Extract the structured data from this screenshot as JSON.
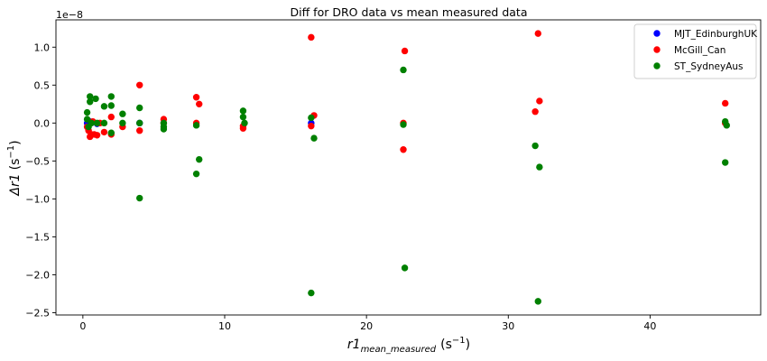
{
  "chart_data": {
    "type": "scatter",
    "title": "Diff for DRO data vs mean measured data",
    "xlabel": {
      "base": "r1",
      "sub": "mean_measured",
      "unit_pre": "(s",
      "unit_sup": "−1",
      "unit_post": ")"
    },
    "ylabel": {
      "base": "Δr1",
      "unit_pre": "(s",
      "unit_sup": "−1",
      "unit_post": ")"
    },
    "y_offset_text": "1e−8",
    "xlim": [
      -1.9,
      47.8
    ],
    "ylim": [
      -2.53,
      1.36
    ],
    "xticks": [
      0,
      10,
      20,
      30,
      40
    ],
    "xtick_labels": [
      "0",
      "10",
      "20",
      "30",
      "40"
    ],
    "yticks": [
      1.0,
      0.5,
      0.0,
      -0.5,
      -1.0,
      -1.5,
      -2.0,
      -2.5
    ],
    "ytick_labels": [
      "1.0",
      "0.5",
      "0.0",
      "−0.5",
      "−1.0",
      "−1.5",
      "−2.0",
      "−2.5"
    ],
    "legend_position": "top-right",
    "series": [
      {
        "name": "MJT_EdinburghUK",
        "color": "#0000ff",
        "points": [
          [
            0.3,
            0.0
          ],
          [
            0.5,
            0.02
          ],
          [
            1.0,
            -0.01
          ],
          [
            4.0,
            0.0
          ],
          [
            16.1,
            0.0
          ]
        ]
      },
      {
        "name": "McGill_Can",
        "color": "#ff0000",
        "points": [
          [
            0.3,
            -0.05
          ],
          [
            0.4,
            -0.1
          ],
          [
            0.5,
            -0.18
          ],
          [
            0.6,
            -0.15
          ],
          [
            0.7,
            0.02
          ],
          [
            0.8,
            -0.15
          ],
          [
            1.0,
            -0.16
          ],
          [
            1.2,
            0.0
          ],
          [
            1.5,
            -0.12
          ],
          [
            2.0,
            0.08
          ],
          [
            2.0,
            -0.15
          ],
          [
            2.8,
            -0.05
          ],
          [
            4.0,
            0.5
          ],
          [
            4.0,
            -0.1
          ],
          [
            5.7,
            0.05
          ],
          [
            5.7,
            0.0
          ],
          [
            8.0,
            0.34
          ],
          [
            8.2,
            0.25
          ],
          [
            8.0,
            0.0
          ],
          [
            11.3,
            -0.07
          ],
          [
            11.3,
            -0.04
          ],
          [
            16.1,
            1.13
          ],
          [
            16.1,
            -0.04
          ],
          [
            16.3,
            0.1
          ],
          [
            22.7,
            0.95
          ],
          [
            22.6,
            0.0
          ],
          [
            22.6,
            -0.35
          ],
          [
            32.1,
            1.18
          ],
          [
            32.2,
            0.29
          ],
          [
            31.9,
            0.15
          ],
          [
            45.3,
            0.26
          ],
          [
            45.3,
            0.0
          ]
        ]
      },
      {
        "name": "ST_SydneyAus",
        "color": "#008000",
        "points": [
          [
            0.3,
            0.14
          ],
          [
            0.3,
            0.05
          ],
          [
            0.4,
            -0.05
          ],
          [
            0.5,
            0.35
          ],
          [
            0.5,
            0.28
          ],
          [
            0.6,
            0.0
          ],
          [
            0.9,
            0.32
          ],
          [
            1.0,
            0.0
          ],
          [
            1.5,
            0.22
          ],
          [
            1.5,
            0.0
          ],
          [
            2.0,
            0.35
          ],
          [
            2.0,
            0.23
          ],
          [
            2.0,
            -0.13
          ],
          [
            2.8,
            0.12
          ],
          [
            2.8,
            0.0
          ],
          [
            4.0,
            -0.99
          ],
          [
            4.0,
            0.2
          ],
          [
            4.0,
            0.0
          ],
          [
            5.7,
            -0.08
          ],
          [
            5.7,
            0.0
          ],
          [
            5.7,
            -0.05
          ],
          [
            8.0,
            -0.03
          ],
          [
            8.2,
            -0.48
          ],
          [
            8.0,
            -0.67
          ],
          [
            11.3,
            0.16
          ],
          [
            11.3,
            0.08
          ],
          [
            11.4,
            0.0
          ],
          [
            16.1,
            -2.24
          ],
          [
            16.1,
            0.07
          ],
          [
            16.3,
            -0.2
          ],
          [
            22.6,
            0.7
          ],
          [
            22.6,
            -0.02
          ],
          [
            22.7,
            -1.91
          ],
          [
            31.9,
            -0.3
          ],
          [
            32.2,
            -0.58
          ],
          [
            32.1,
            -2.35
          ],
          [
            45.3,
            -0.52
          ],
          [
            45.4,
            -0.03
          ],
          [
            45.3,
            0.02
          ]
        ]
      }
    ]
  }
}
